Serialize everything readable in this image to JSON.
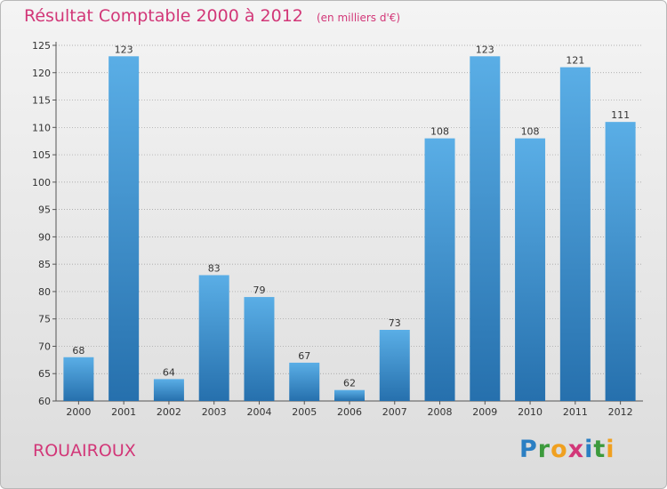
{
  "colors": {
    "bar_light": "#5aaee6",
    "bar_dark": "#2670ad",
    "title": "#d23778",
    "grid": "#9a9a9a",
    "text": "#333333"
  },
  "commune": "ROUAIROUX",
  "brand": {
    "letters": [
      "P",
      "r",
      "o",
      "x",
      "i",
      "t",
      "i"
    ],
    "colors": [
      "#2b7fc3",
      "#3c9a3c",
      "#f0a020",
      "#d23778",
      "#2b7fc3",
      "#3c9a3c",
      "#f0a020"
    ]
  },
  "chart_data": {
    "type": "bar",
    "title": "Résultat Comptable 2000 à 2012",
    "subtitle": "(en milliers d'€)",
    "categories": [
      "2000",
      "2001",
      "2002",
      "2003",
      "2004",
      "2005",
      "2006",
      "2007",
      "2008",
      "2009",
      "2010",
      "2011",
      "2012"
    ],
    "values": [
      68,
      123,
      64,
      83,
      79,
      67,
      62,
      73,
      108,
      123,
      108,
      121,
      111
    ],
    "ylim": [
      60,
      125
    ],
    "yticks": [
      60,
      65,
      70,
      75,
      80,
      85,
      90,
      95,
      100,
      105,
      110,
      115,
      120,
      125
    ],
    "xlabel": "",
    "ylabel": "",
    "grid": true
  }
}
